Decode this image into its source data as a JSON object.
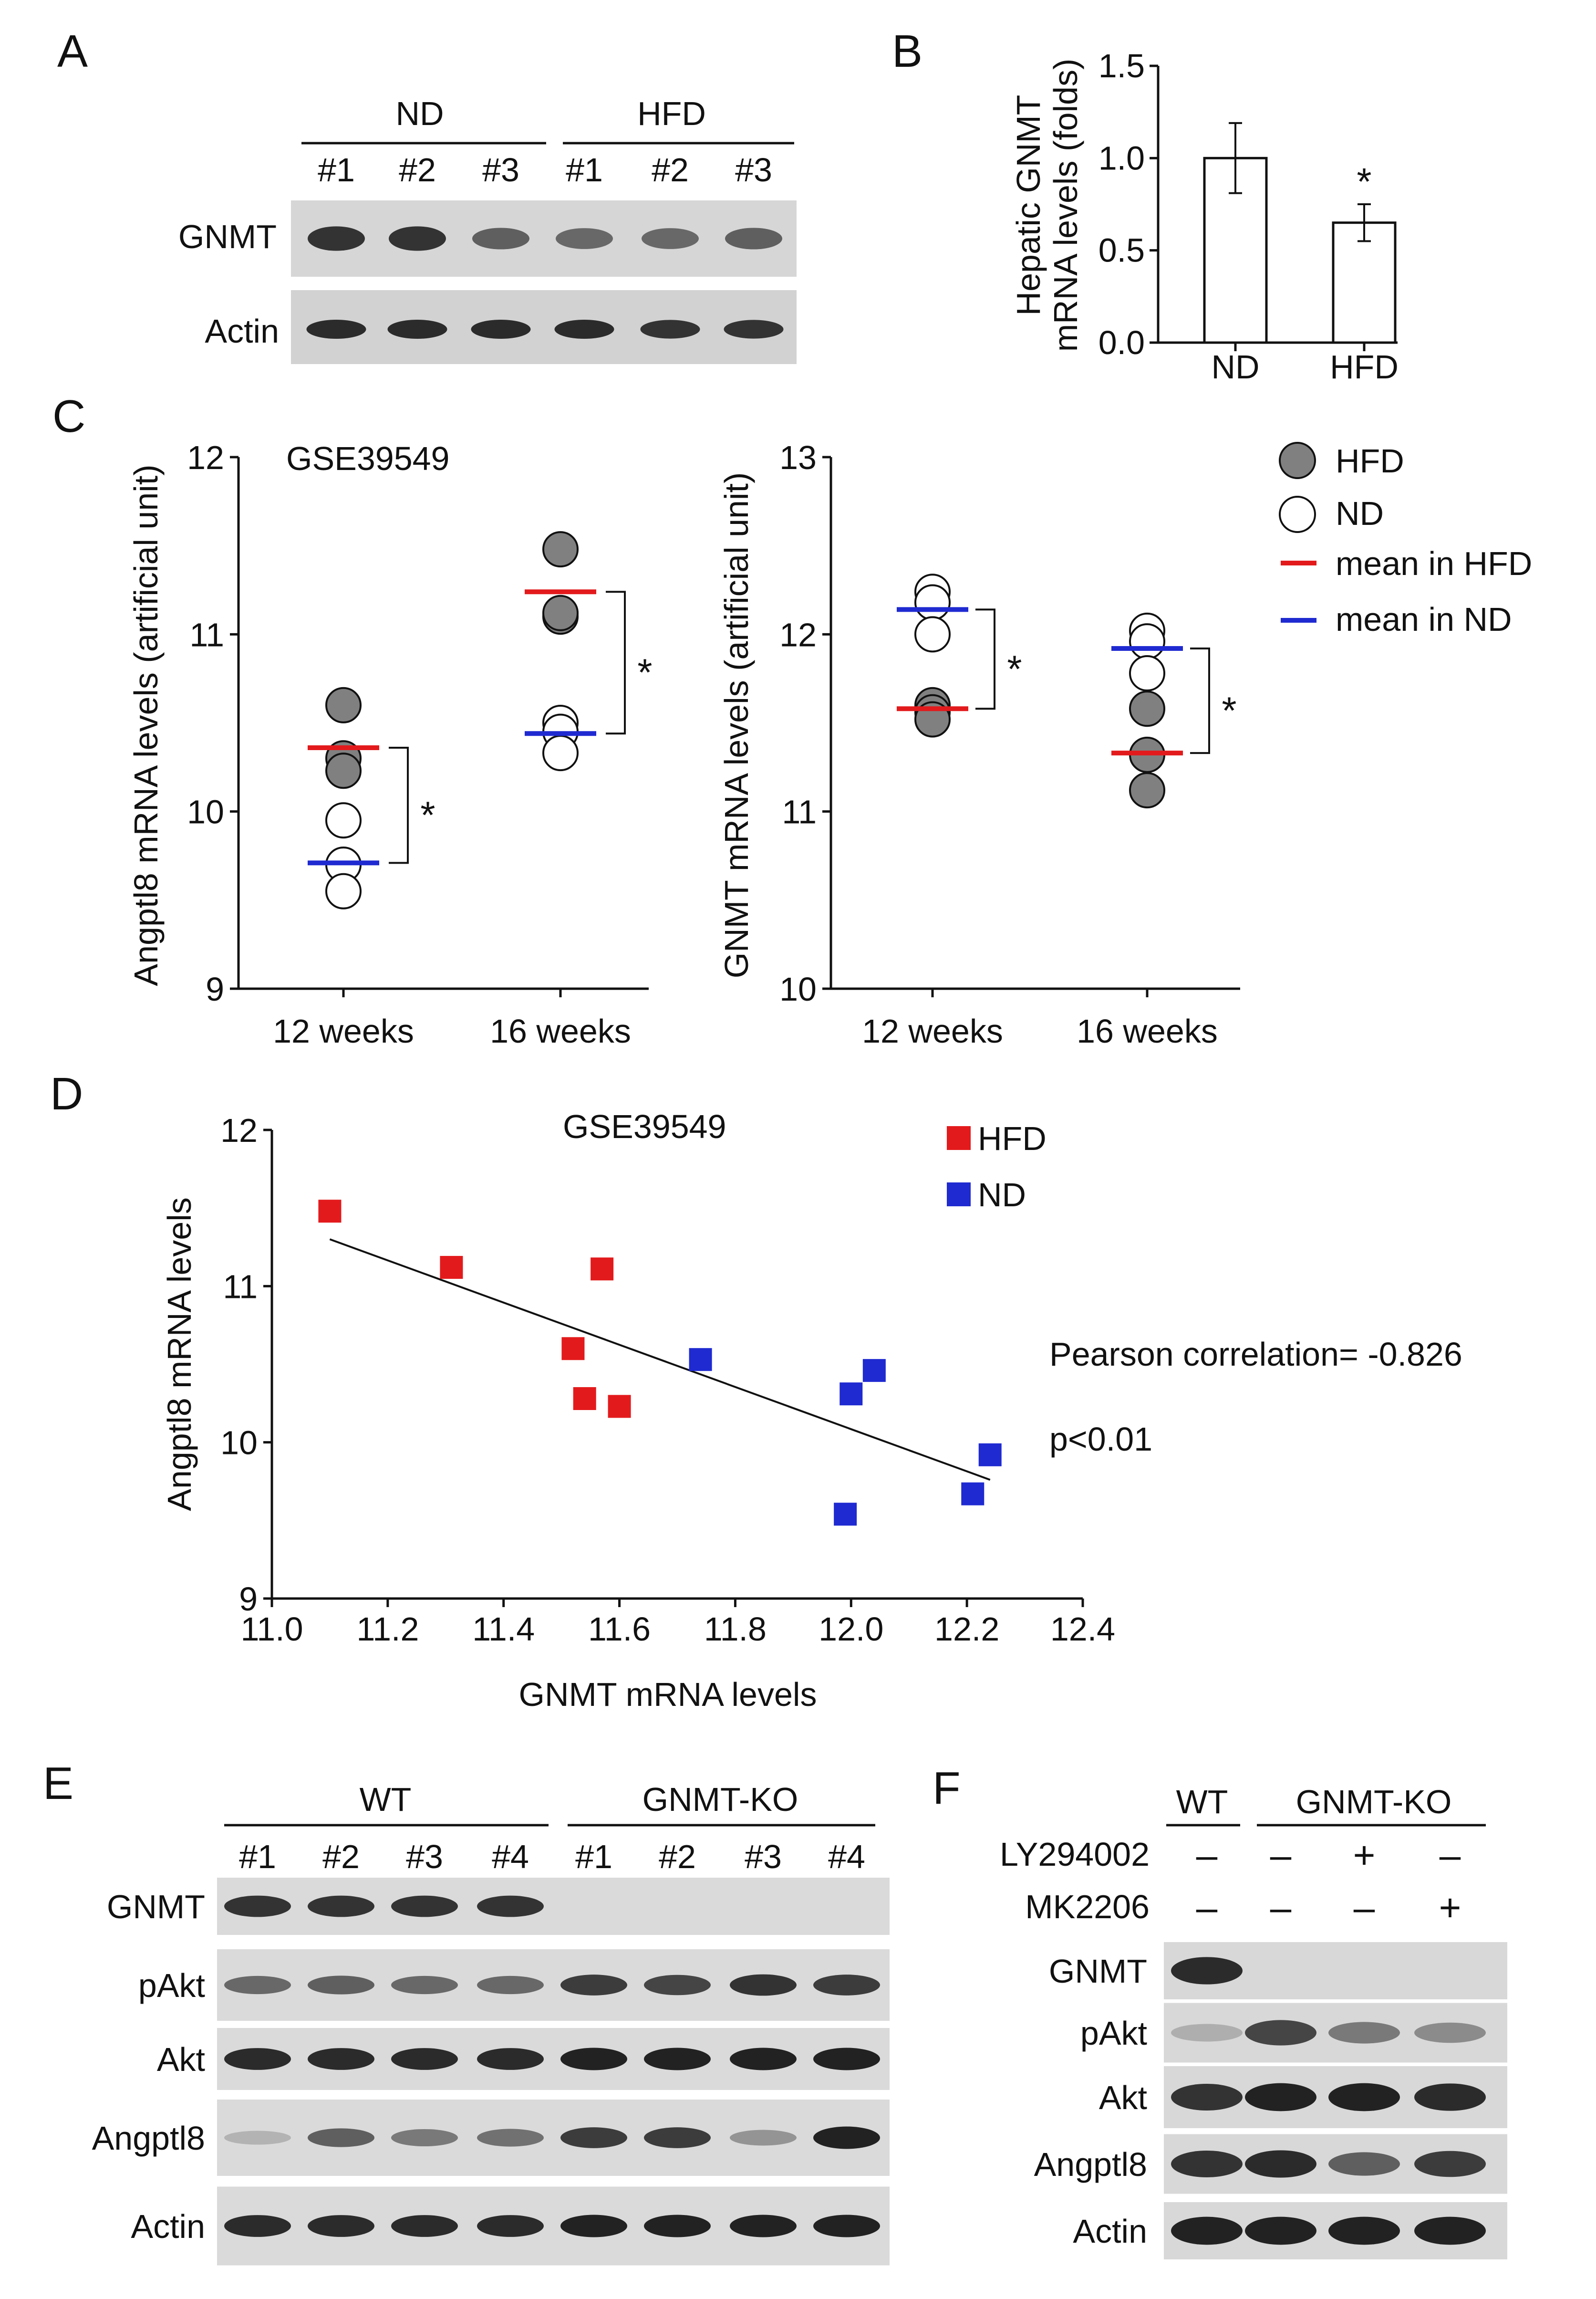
{
  "panels": {
    "A": "A",
    "B": "B",
    "C": "C",
    "D": "D",
    "E": "E",
    "F": "F"
  },
  "panel_a": {
    "groups": [
      "ND",
      "HFD"
    ],
    "lanes": [
      "#1",
      "#2",
      "#3",
      "#1",
      "#2",
      "#3"
    ],
    "rows": [
      "GNMT",
      "Actin"
    ],
    "band_intensity": {
      "GNMT": [
        0.85,
        0.85,
        0.6,
        0.55,
        0.55,
        0.6
      ],
      "Actin": [
        0.9,
        0.9,
        0.9,
        0.9,
        0.85,
        0.85
      ]
    }
  },
  "panel_e": {
    "groups": [
      "WT",
      "GNMT-KO"
    ],
    "lanes": [
      "#1",
      "#2",
      "#3",
      "#4",
      "#1",
      "#2",
      "#3",
      "#4"
    ],
    "rows": [
      "GNMT",
      "pAkt",
      "Akt",
      "Angptl8",
      "Actin"
    ],
    "band_intensity": {
      "GNMT": [
        0.85,
        0.85,
        0.85,
        0.85,
        0,
        0,
        0,
        0
      ],
      "pAkt": [
        0.55,
        0.6,
        0.55,
        0.55,
        0.8,
        0.75,
        0.85,
        0.8
      ],
      "Akt": [
        0.9,
        0.9,
        0.9,
        0.9,
        0.95,
        0.95,
        0.95,
        0.95
      ],
      "Angptl8": [
        0.12,
        0.6,
        0.45,
        0.5,
        0.8,
        0.8,
        0.3,
        0.95
      ],
      "Actin": [
        0.9,
        0.9,
        0.9,
        0.9,
        0.95,
        0.95,
        0.95,
        0.95
      ]
    }
  },
  "panel_f": {
    "groups": [
      "WT",
      "GNMT-KO"
    ],
    "treatments": [
      {
        "name": "LY294002",
        "signs": [
          "–",
          "–",
          "+",
          "–"
        ]
      },
      {
        "name": "MK2206",
        "signs": [
          "–",
          "–",
          "–",
          "+"
        ]
      }
    ],
    "rows": [
      "GNMT",
      "pAkt",
      "Akt",
      "Angptl8",
      "Actin"
    ],
    "band_intensity": {
      "GNMT": [
        0.9,
        0,
        0,
        0
      ],
      "pAkt": [
        0.15,
        0.75,
        0.45,
        0.35
      ],
      "Akt": [
        0.85,
        0.95,
        0.95,
        0.9
      ],
      "Angptl8": [
        0.85,
        0.9,
        0.6,
        0.8
      ],
      "Actin": [
        0.95,
        0.95,
        0.95,
        0.95
      ]
    }
  },
  "chart_data": [
    {
      "id": "B",
      "type": "bar",
      "categories": [
        "ND",
        "HFD"
      ],
      "values": [
        1.0,
        0.65
      ],
      "errors": [
        0.19,
        0.1
      ],
      "ylabel_lines": [
        "Hepatic GNMT",
        "mRNA levels (folds)"
      ],
      "ylim": [
        0,
        1.5
      ],
      "yticks": [
        "0.0",
        "0.5",
        "1.0",
        "1.5"
      ],
      "annotations": [
        "",
        "*"
      ]
    },
    {
      "id": "C-left",
      "type": "scatter",
      "dataset": "GSE39549",
      "ylabel": "Angptl8 mRNA levels (artificial unit)",
      "ylim": [
        9,
        12
      ],
      "yticks": [
        "9",
        "10",
        "11",
        "12"
      ],
      "categories": [
        "12 weeks",
        "16 weeks"
      ],
      "series": [
        {
          "name": "HFD",
          "points": [
            [
              0,
              10.6
            ],
            [
              0,
              10.3
            ],
            [
              0,
              10.23
            ],
            [
              1,
              11.48
            ],
            [
              1,
              11.1
            ],
            [
              1,
              11.12
            ]
          ]
        },
        {
          "name": "ND",
          "points": [
            [
              0,
              9.95
            ],
            [
              0,
              9.7
            ],
            [
              0,
              9.55
            ],
            [
              1,
              10.5
            ],
            [
              1,
              10.45
            ],
            [
              1,
              10.33
            ]
          ]
        }
      ],
      "means": {
        "HFD": [
          10.36,
          11.24
        ],
        "ND": [
          9.71,
          10.44
        ]
      },
      "annotations": [
        "*",
        "*"
      ]
    },
    {
      "id": "C-right",
      "type": "scatter",
      "ylabel": "GNMT mRNA levels (artificial unit)",
      "ylim": [
        10,
        13
      ],
      "yticks": [
        "10",
        "11",
        "12",
        "13"
      ],
      "categories": [
        "12 weeks",
        "16 weeks"
      ],
      "series": [
        {
          "name": "HFD",
          "points": [
            [
              0,
              11.6
            ],
            [
              0,
              11.56
            ],
            [
              0,
              11.52
            ],
            [
              1,
              11.58
            ],
            [
              1,
              11.32
            ],
            [
              1,
              11.12
            ]
          ]
        },
        {
          "name": "ND",
          "points": [
            [
              0,
              12.24
            ],
            [
              0,
              12.18
            ],
            [
              0,
              12.0
            ],
            [
              1,
              12.02
            ],
            [
              1,
              11.96
            ],
            [
              1,
              11.78
            ]
          ]
        }
      ],
      "means": {
        "HFD": [
          11.58,
          11.33
        ],
        "ND": [
          12.14,
          11.92
        ]
      },
      "annotations": [
        "*",
        "*"
      ],
      "legend": [
        "HFD",
        "ND",
        "mean in HFD",
        "mean in ND"
      ]
    },
    {
      "id": "D",
      "type": "scatter",
      "dataset": "GSE39549",
      "xlabel": "GNMT mRNA levels",
      "ylabel": "Angptl8 mRNA levels",
      "xlim": [
        11.0,
        12.4
      ],
      "ylim": [
        9,
        12
      ],
      "xticks": [
        "11.0",
        "11.2",
        "11.4",
        "11.6",
        "11.8",
        "12.0",
        "12.2",
        "12.4"
      ],
      "yticks": [
        "9",
        "10",
        "11",
        "12"
      ],
      "series": [
        {
          "name": "HFD",
          "color": "#e31a1c",
          "points": [
            [
              11.1,
              11.48
            ],
            [
              11.31,
              11.12
            ],
            [
              11.52,
              10.6
            ],
            [
              11.57,
              11.11
            ],
            [
              11.54,
              10.28
            ],
            [
              11.6,
              10.23
            ]
          ]
        },
        {
          "name": "ND",
          "color": "#1f2ad1",
          "points": [
            [
              11.74,
              10.53
            ],
            [
              12.04,
              10.46
            ],
            [
              12.0,
              10.31
            ],
            [
              12.24,
              9.92
            ],
            [
              12.21,
              9.67
            ],
            [
              11.99,
              9.54
            ]
          ]
        }
      ],
      "fit_line": [
        [
          11.1,
          11.3
        ],
        [
          12.24,
          9.76
        ]
      ],
      "stats": [
        "Pearson correlation= -0.826",
        "p<0.01"
      ],
      "legend": [
        "HFD",
        "ND"
      ]
    }
  ]
}
